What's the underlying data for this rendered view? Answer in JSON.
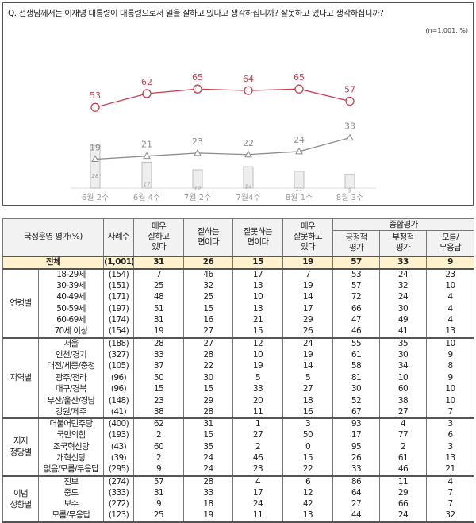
{
  "question": "Q. 선생님께서는 이재명 대통령이 대통령으로서 일을 잘하고 있다고 생각하십니까? 잘못하고 있다고 생각하십니까?",
  "sample_note": "(n=1,001, %)",
  "chart_data": {
    "type": "line",
    "categories": [
      "6월 2주",
      "6월 4주",
      "7월 2주",
      "7월4주",
      "8월 1주",
      "8월 3주"
    ],
    "series": [
      {
        "values": [
          53,
          62,
          65,
          64,
          65,
          57
        ],
        "color": "#c8404f",
        "marker": "circle"
      },
      {
        "values": [
          19,
          21,
          23,
          22,
          24,
          33
        ],
        "color": "#8c8c8c",
        "marker": "triangle"
      },
      {
        "values": [
          28,
          17,
          12,
          14,
          11,
          9
        ],
        "color": "#bdbdbd",
        "type": "bar"
      }
    ],
    "ylim": [
      0,
      70
    ],
    "grid": false
  },
  "table": {
    "header": {
      "title": "국정운영 평가(%)",
      "n": "사례수",
      "c1": "매우\n잘하고\n있다",
      "c2": "잘하는\n편이다",
      "c3": "잘못하는\n편이다",
      "c4": "매우\n잘못하고\n있다",
      "group": "종합평가",
      "g1": "긍정적\n평가",
      "g2": "부정적\n평가",
      "g3": "모름/\n무응답"
    },
    "total": {
      "label": "전체",
      "n": "(1,001)",
      "v": [
        "31",
        "26",
        "15",
        "19",
        "57",
        "33",
        "9"
      ]
    },
    "groups": [
      {
        "name": "연령별",
        "rows": [
          {
            "label": "18-29세",
            "n": "(154)",
            "v": [
              "7",
              "46",
              "17",
              "7",
              "53",
              "24",
              "23"
            ]
          },
          {
            "label": "30-39세",
            "n": "(151)",
            "v": [
              "25",
              "32",
              "13",
              "19",
              "57",
              "32",
              "10"
            ]
          },
          {
            "label": "40-49세",
            "n": "(171)",
            "v": [
              "48",
              "25",
              "10",
              "14",
              "72",
              "24",
              "4"
            ]
          },
          {
            "label": "50-59세",
            "n": "(197)",
            "v": [
              "51",
              "15",
              "13",
              "17",
              "66",
              "30",
              "4"
            ]
          },
          {
            "label": "60-69세",
            "n": "(174)",
            "v": [
              "31",
              "16",
              "21",
              "29",
              "47",
              "49",
              "4"
            ]
          },
          {
            "label": "70세 이상",
            "n": "(154)",
            "v": [
              "19",
              "27",
              "15",
              "26",
              "46",
              "41",
              "13"
            ]
          }
        ]
      },
      {
        "name": "지역별",
        "rows": [
          {
            "label": "서울",
            "n": "(188)",
            "v": [
              "28",
              "27",
              "12",
              "24",
              "55",
              "35",
              "10"
            ]
          },
          {
            "label": "인천/경기",
            "n": "(327)",
            "v": [
              "33",
              "28",
              "10",
              "19",
              "61",
              "30",
              "9"
            ]
          },
          {
            "label": "대전/세종/충청",
            "n": "(105)",
            "v": [
              "37",
              "22",
              "19",
              "14",
              "58",
              "34",
              "8"
            ]
          },
          {
            "label": "광주/전라",
            "n": "(96)",
            "v": [
              "50",
              "30",
              "5",
              "5",
              "81",
              "10",
              "9"
            ]
          },
          {
            "label": "대구/경북",
            "n": "(96)",
            "v": [
              "15",
              "15",
              "33",
              "27",
              "30",
              "60",
              "10"
            ]
          },
          {
            "label": "부산/울산/경남",
            "n": "(148)",
            "v": [
              "23",
              "29",
              "20",
              "18",
              "52",
              "38",
              "10"
            ]
          },
          {
            "label": "강원/제주",
            "n": "(41)",
            "v": [
              "38",
              "28",
              "11",
              "16",
              "67",
              "27",
              "7"
            ]
          }
        ]
      },
      {
        "name": "지지\n정당별",
        "rows": [
          {
            "label": "더불어민주당",
            "n": "(400)",
            "v": [
              "62",
              "31",
              "1",
              "3",
              "93",
              "4",
              "3"
            ]
          },
          {
            "label": "국민의힘",
            "n": "(193)",
            "v": [
              "2",
              "15",
              "27",
              "50",
              "17",
              "77",
              "6"
            ]
          },
          {
            "label": "조국혁신당",
            "n": "(43)",
            "v": [
              "60",
              "35",
              "2",
              "0",
              "95",
              "2",
              "3"
            ]
          },
          {
            "label": "개혁신당",
            "n": "(39)",
            "v": [
              "2",
              "24",
              "46",
              "15",
              "26",
              "61",
              "13"
            ]
          },
          {
            "label": "없음/모름/무응답",
            "n": "(295)",
            "v": [
              "9",
              "24",
              "23",
              "22",
              "33",
              "46",
              "21"
            ]
          }
        ]
      },
      {
        "name": "이념\n성향별",
        "rows": [
          {
            "label": "진보",
            "n": "(274)",
            "v": [
              "57",
              "28",
              "4",
              "6",
              "86",
              "11",
              "4"
            ]
          },
          {
            "label": "중도",
            "n": "(333)",
            "v": [
              "31",
              "33",
              "17",
              "12",
              "64",
              "29",
              "7"
            ]
          },
          {
            "label": "보수",
            "n": "(272)",
            "v": [
              "9",
              "18",
              "24",
              "42",
              "27",
              "66",
              "7"
            ]
          },
          {
            "label": "모름/무응답",
            "n": "(123)",
            "v": [
              "25",
              "19",
              "11",
              "13",
              "44",
              "24",
              "32"
            ]
          }
        ]
      }
    ]
  }
}
